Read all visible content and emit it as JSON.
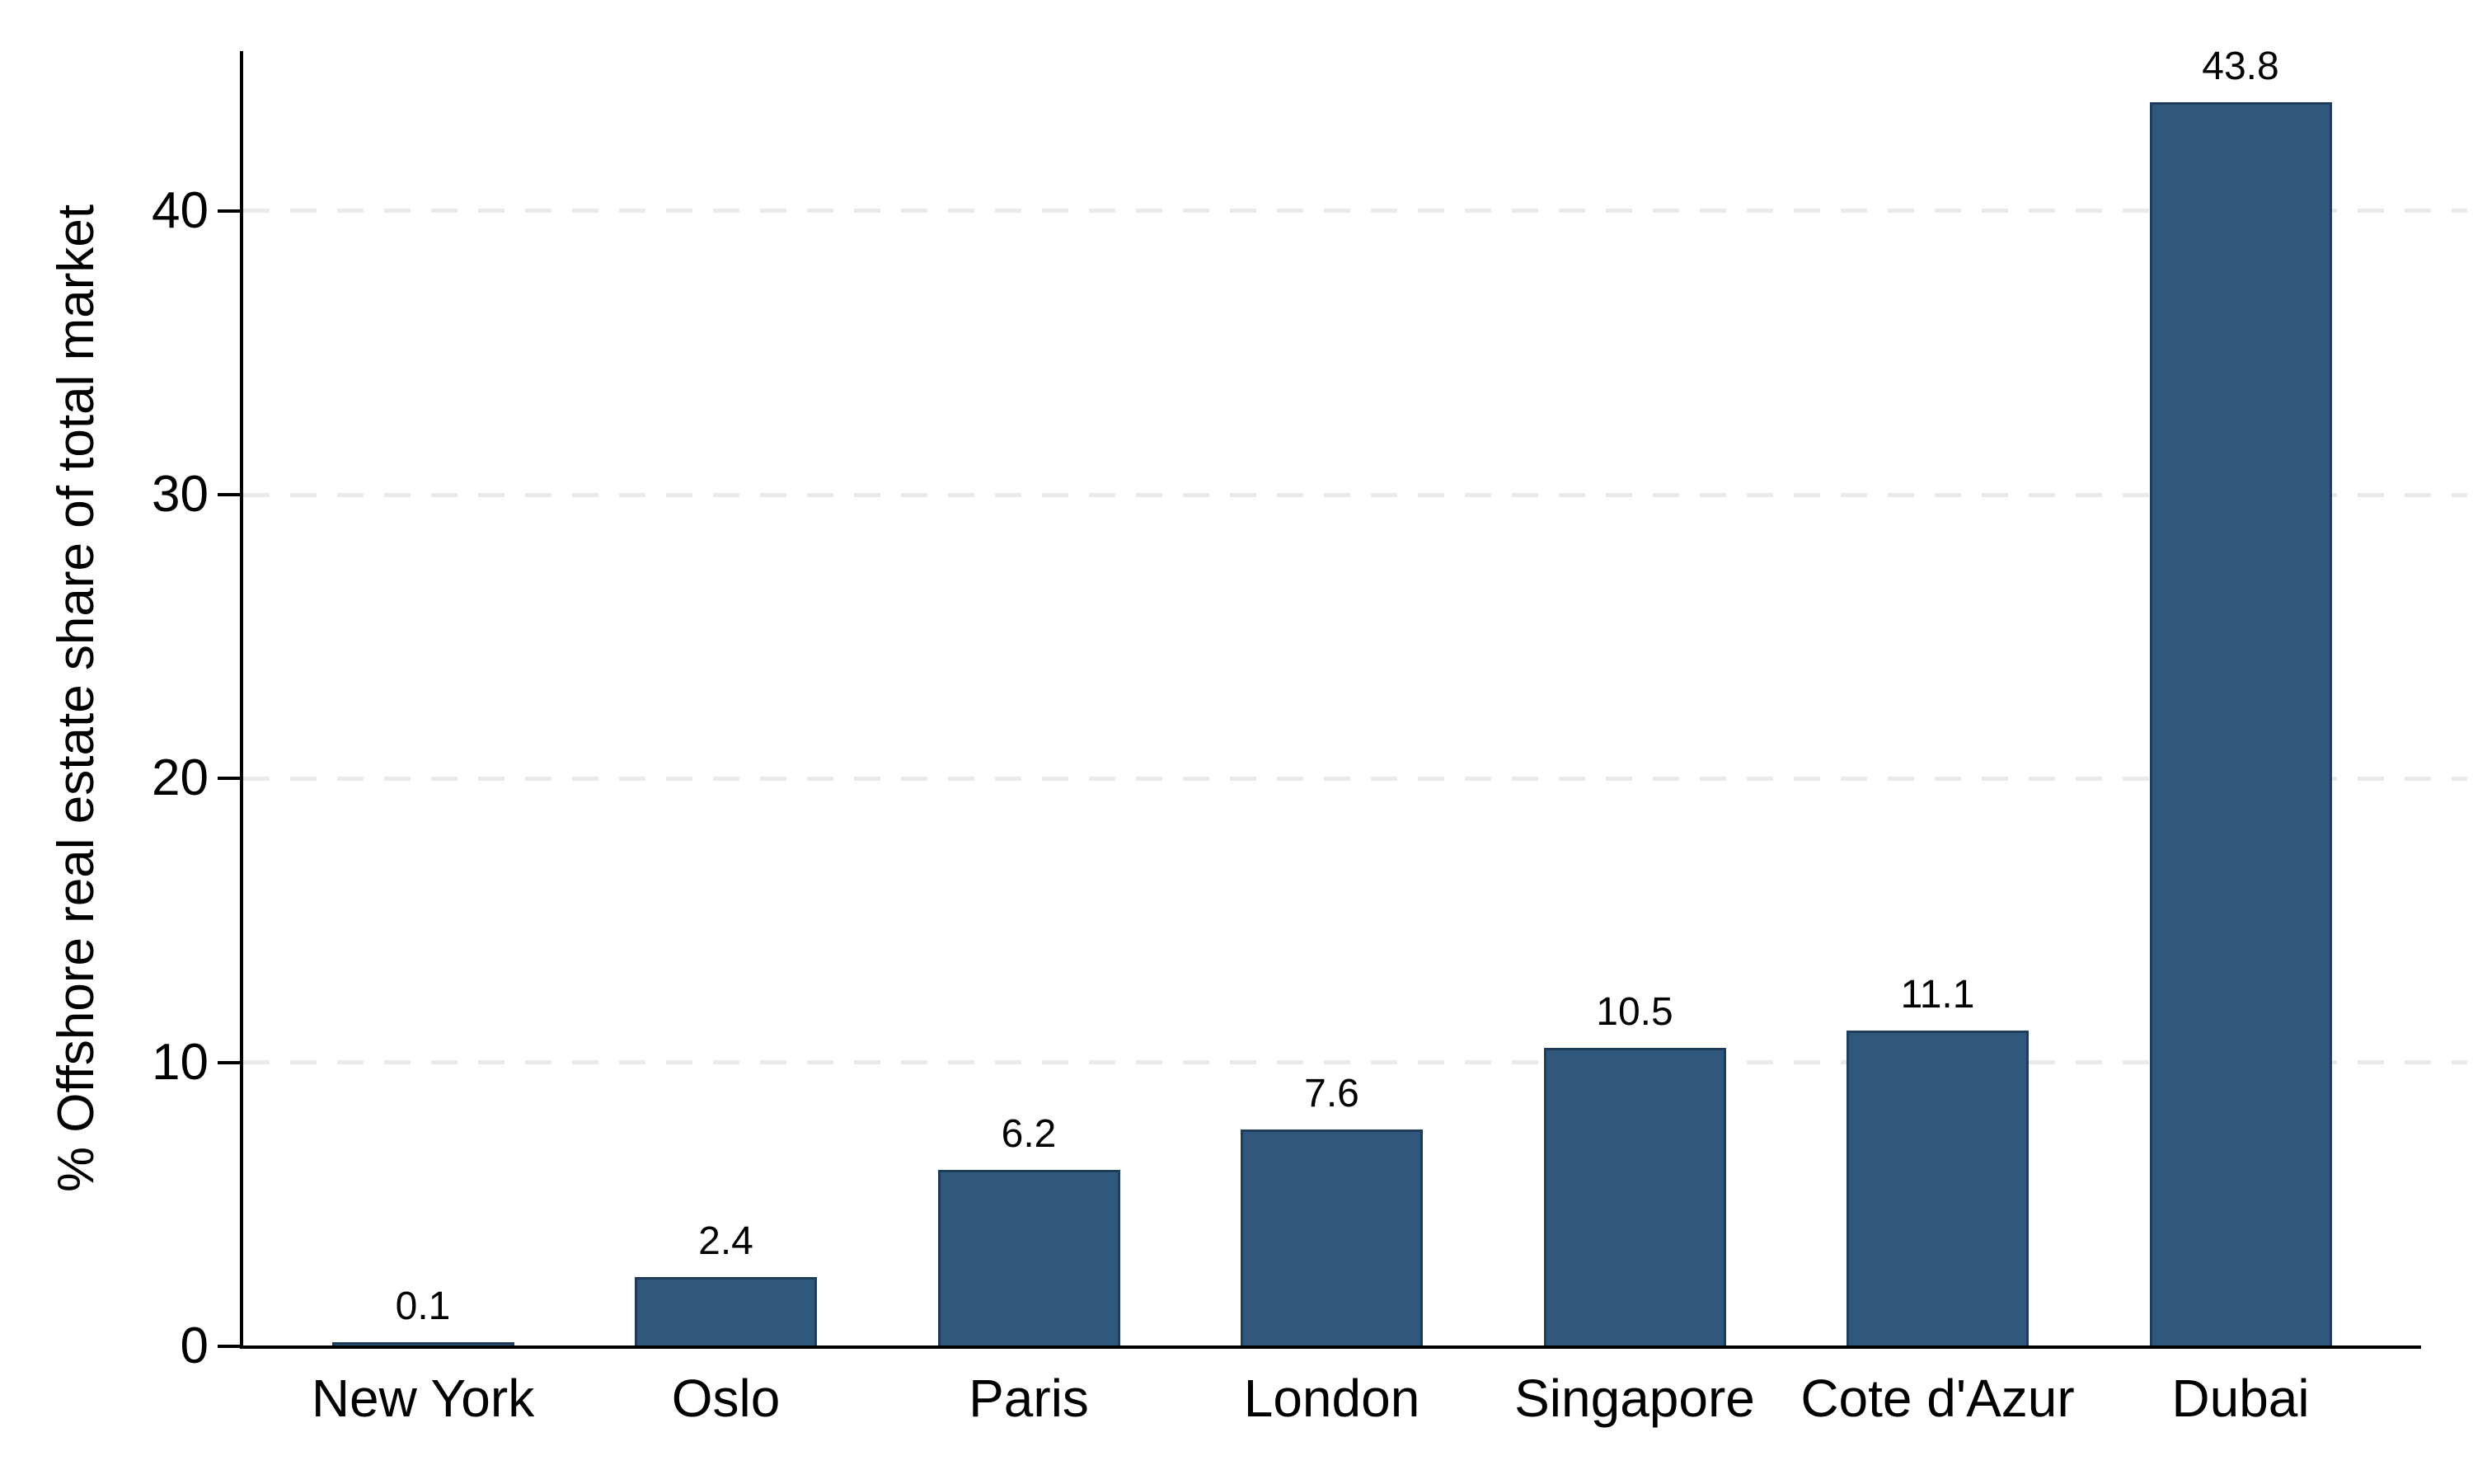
{
  "chart_data": {
    "type": "bar",
    "title": "",
    "xlabel": "",
    "ylabel": "% Offshore real estate share of total market",
    "categories": [
      "New York",
      "Oslo",
      "Paris",
      "London",
      "Singapore",
      "Cote d'Azur",
      "Dubai"
    ],
    "values": [
      0.1,
      2.4,
      6.2,
      7.6,
      10.5,
      11.1,
      43.8
    ],
    "value_labels": [
      "0.1",
      "2.4",
      "6.2",
      "7.6",
      "10.5",
      "11.1",
      "43.8"
    ],
    "yticks": [
      0,
      10,
      20,
      30,
      40
    ],
    "ytick_labels": [
      "0",
      "10",
      "20",
      "30",
      "40"
    ],
    "ylim": [
      0,
      45.6
    ],
    "grid": "horizontal dashed lines at yticks above 0",
    "legend": "none",
    "colors": {
      "bar_fill": "#30577C",
      "bar_border": "#1E3D5A",
      "grid_line": "#E9E9E9",
      "axis_line": "#000000",
      "text": "#000000",
      "background": "#FFFFFF"
    }
  }
}
